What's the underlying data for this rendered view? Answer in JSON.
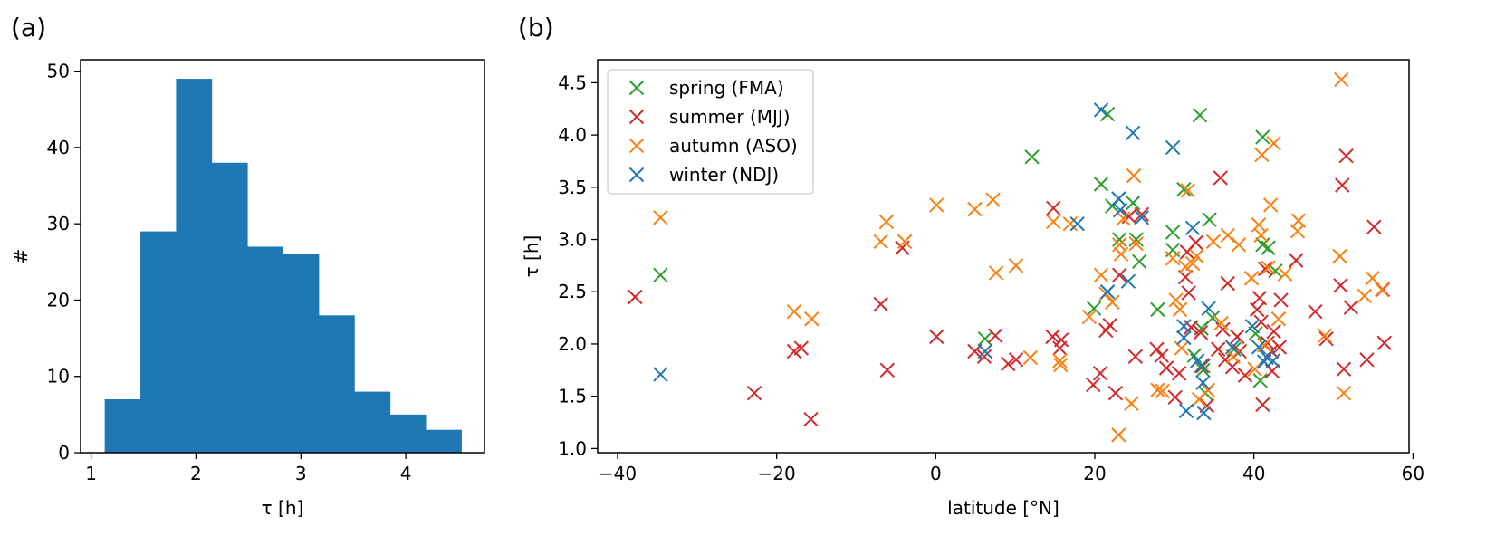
{
  "panels": [
    "(a)",
    "(b)"
  ],
  "chart_data": [
    {
      "type": "bar",
      "xlabel": "τ [h]",
      "ylabel": "#",
      "xlim": [
        0.9,
        4.75
      ],
      "ylim": [
        0,
        51.5
      ],
      "xticks": [
        1,
        2,
        3,
        4
      ],
      "yticks": [
        0,
        10,
        20,
        30,
        40,
        50
      ],
      "color": "#1f77b4",
      "bin_edges": [
        1.13,
        1.47,
        1.81,
        2.15,
        2.49,
        2.83,
        3.17,
        3.51,
        3.85,
        4.19,
        4.53
      ],
      "values": [
        7,
        29,
        49,
        38,
        27,
        26,
        18,
        8,
        5,
        3
      ]
    },
    {
      "type": "scatter",
      "xlabel": "latitude [°N]",
      "ylabel": "τ [h]",
      "xlim": [
        -42.5,
        59.5
      ],
      "ylim": [
        0.96,
        4.72
      ],
      "xticks": [
        -40,
        -20,
        0,
        20,
        40,
        60
      ],
      "yticks": [
        1.0,
        1.5,
        2.0,
        2.5,
        3.0,
        3.5,
        4.0,
        4.5
      ],
      "ytick_labels": [
        "1.0",
        "1.5",
        "2.0",
        "2.5",
        "3.0",
        "3.5",
        "4.0",
        "4.5"
      ],
      "legend_position": "upper-left",
      "series": [
        {
          "name": "spring (FMA)",
          "color": "#2ca02c",
          "points": [
            [
              -34.6,
              2.66
            ],
            [
              6.2,
              2.05
            ],
            [
              12.1,
              3.79
            ],
            [
              20.8,
              3.53
            ],
            [
              21.6,
              4.2
            ],
            [
              22.2,
              3.32
            ],
            [
              23.1,
              3.0
            ],
            [
              24.8,
              3.35
            ],
            [
              25.2,
              3.0
            ],
            [
              25.6,
              2.79
            ],
            [
              27.9,
              2.33
            ],
            [
              29.8,
              3.07
            ],
            [
              29.8,
              2.9
            ],
            [
              31.2,
              3.48
            ],
            [
              32.5,
              1.89
            ],
            [
              33.2,
              4.19
            ],
            [
              33.4,
              2.15
            ],
            [
              33.6,
              1.75
            ],
            [
              33.9,
              1.53
            ],
            [
              34.4,
              3.19
            ],
            [
              34.8,
              2.25
            ],
            [
              37.5,
              1.95
            ],
            [
              40.2,
              2.1
            ],
            [
              40.8,
              1.65
            ],
            [
              41.1,
              2.95
            ],
            [
              41.1,
              3.98
            ],
            [
              41.8,
              2.92
            ],
            [
              42.7,
              2.7
            ],
            [
              19.9,
              2.34
            ]
          ]
        },
        {
          "name": "summer (MJJ)",
          "color": "#d62728",
          "points": [
            [
              -37.8,
              2.45
            ],
            [
              -22.8,
              1.53
            ],
            [
              -17.8,
              1.93
            ],
            [
              -16.9,
              1.96
            ],
            [
              -15.7,
              1.28
            ],
            [
              -6.9,
              2.38
            ],
            [
              -6.1,
              1.75
            ],
            [
              -4.2,
              2.92
            ],
            [
              0.1,
              2.07
            ],
            [
              4.9,
              1.93
            ],
            [
              6.1,
              1.88
            ],
            [
              7.5,
              2.08
            ],
            [
              9.1,
              1.81
            ],
            [
              10.1,
              1.85
            ],
            [
              14.8,
              3.3
            ],
            [
              14.7,
              2.07
            ],
            [
              15.6,
              1.96
            ],
            [
              15.8,
              2.04
            ],
            [
              19.8,
              1.61
            ],
            [
              20.7,
              1.72
            ],
            [
              21.4,
              2.13
            ],
            [
              21.9,
              2.18
            ],
            [
              22.6,
              1.53
            ],
            [
              23.1,
              2.66
            ],
            [
              24.3,
              3.22
            ],
            [
              25.1,
              1.88
            ],
            [
              25.9,
              3.24
            ],
            [
              27.8,
              1.95
            ],
            [
              28.4,
              1.89
            ],
            [
              29.0,
              1.77
            ],
            [
              30.1,
              1.49
            ],
            [
              30.6,
              1.72
            ],
            [
              31.4,
              2.64
            ],
            [
              31.6,
              2.88
            ],
            [
              31.8,
              2.49
            ],
            [
              32.1,
              2.16
            ],
            [
              32.7,
              2.97
            ],
            [
              33.3,
              2.11
            ],
            [
              33.6,
              1.79
            ],
            [
              34.1,
              1.41
            ],
            [
              35.5,
              1.95
            ],
            [
              35.8,
              3.59
            ],
            [
              36.1,
              2.14
            ],
            [
              36.4,
              1.85
            ],
            [
              36.7,
              2.58
            ],
            [
              37.3,
              1.78
            ],
            [
              37.9,
              2.07
            ],
            [
              38.2,
              1.93
            ],
            [
              38.9,
              1.7
            ],
            [
              40.4,
              2.33
            ],
            [
              40.7,
              2.44
            ],
            [
              40.9,
              2.21
            ],
            [
              41.1,
              1.42
            ],
            [
              41.4,
              2.72
            ],
            [
              41.7,
              2.01
            ],
            [
              42.2,
              1.93
            ],
            [
              42.3,
              1.74
            ],
            [
              42.5,
              2.12
            ],
            [
              43.2,
              1.97
            ],
            [
              43.4,
              2.42
            ],
            [
              45.3,
              2.8
            ],
            [
              47.7,
              2.31
            ],
            [
              49.1,
              2.05
            ],
            [
              51.1,
              3.52
            ],
            [
              51.3,
              1.76
            ],
            [
              51.6,
              3.8
            ],
            [
              50.9,
              2.56
            ],
            [
              52.2,
              2.35
            ],
            [
              54.2,
              1.85
            ],
            [
              55.1,
              3.12
            ],
            [
              56.4,
              2.01
            ],
            [
              56.2,
              2.52
            ]
          ]
        },
        {
          "name": "autumn (ASO)",
          "color": "#ff7f0e",
          "points": [
            [
              -34.6,
              3.21
            ],
            [
              -17.8,
              2.31
            ],
            [
              -15.6,
              2.24
            ],
            [
              -6.9,
              2.98
            ],
            [
              -6.2,
              3.17
            ],
            [
              -3.9,
              2.98
            ],
            [
              0.1,
              3.33
            ],
            [
              4.9,
              3.29
            ],
            [
              7.2,
              3.38
            ],
            [
              7.6,
              2.68
            ],
            [
              10.1,
              2.75
            ],
            [
              11.9,
              1.87
            ],
            [
              14.8,
              3.17
            ],
            [
              15.6,
              1.84
            ],
            [
              15.7,
              1.8
            ],
            [
              16.9,
              3.15
            ],
            [
              19.3,
              2.26
            ],
            [
              20.8,
              2.66
            ],
            [
              21.4,
              2.48
            ],
            [
              22.2,
              2.4
            ],
            [
              23.0,
              1.13
            ],
            [
              23.1,
              2.95
            ],
            [
              23.3,
              2.86
            ],
            [
              23.6,
              3.2
            ],
            [
              24.6,
              1.43
            ],
            [
              24.9,
              3.61
            ],
            [
              25.2,
              2.96
            ],
            [
              27.9,
              1.56
            ],
            [
              28.5,
              1.55
            ],
            [
              29.8,
              2.82
            ],
            [
              30.2,
              2.42
            ],
            [
              30.7,
              2.33
            ],
            [
              30.9,
              1.96
            ],
            [
              31.4,
              2.74
            ],
            [
              31.7,
              3.47
            ],
            [
              32.3,
              2.77
            ],
            [
              32.8,
              2.84
            ],
            [
              33.1,
              1.47
            ],
            [
              33.5,
              1.8
            ],
            [
              34.2,
              1.56
            ],
            [
              34.9,
              2.98
            ],
            [
              35.9,
              2.2
            ],
            [
              36.7,
              3.04
            ],
            [
              37.4,
              1.88
            ],
            [
              38.1,
              2.95
            ],
            [
              39.7,
              2.63
            ],
            [
              40.1,
              1.76
            ],
            [
              40.6,
              3.14
            ],
            [
              40.9,
              3.04
            ],
            [
              41.0,
              3.81
            ],
            [
              41.3,
              1.99
            ],
            [
              41.8,
              2.73
            ],
            [
              42.1,
              3.33
            ],
            [
              42.5,
              3.92
            ],
            [
              43.1,
              2.24
            ],
            [
              43.9,
              2.67
            ],
            [
              45.6,
              3.18
            ],
            [
              45.5,
              3.08
            ],
            [
              48.9,
              2.08
            ],
            [
              50.8,
              2.84
            ],
            [
              51.3,
              1.53
            ],
            [
              51.0,
              4.53
            ],
            [
              53.9,
              2.46
            ],
            [
              54.9,
              2.63
            ],
            [
              56.1,
              2.52
            ]
          ]
        },
        {
          "name": "winter (NDJ)",
          "color": "#1f77b4",
          "points": [
            [
              -34.6,
              1.71
            ],
            [
              6.2,
              1.93
            ],
            [
              17.8,
              3.15
            ],
            [
              20.8,
              4.24
            ],
            [
              21.6,
              2.5
            ],
            [
              23.0,
              3.39
            ],
            [
              23.2,
              3.28
            ],
            [
              24.2,
              2.6
            ],
            [
              24.8,
              4.02
            ],
            [
              25.9,
              3.21
            ],
            [
              29.8,
              3.88
            ],
            [
              31.2,
              2.17
            ],
            [
              31.5,
              1.36
            ],
            [
              32.3,
              3.11
            ],
            [
              32.9,
              1.84
            ],
            [
              33.4,
              1.79
            ],
            [
              33.6,
              1.63
            ],
            [
              33.7,
              1.34
            ],
            [
              34.3,
              2.34
            ],
            [
              37.3,
              1.97
            ],
            [
              39.8,
              2.17
            ],
            [
              40.6,
              1.97
            ],
            [
              41.3,
              1.83
            ],
            [
              41.6,
              1.87
            ],
            [
              42.4,
              1.84
            ],
            [
              31.2,
              2.06
            ]
          ]
        }
      ]
    }
  ]
}
